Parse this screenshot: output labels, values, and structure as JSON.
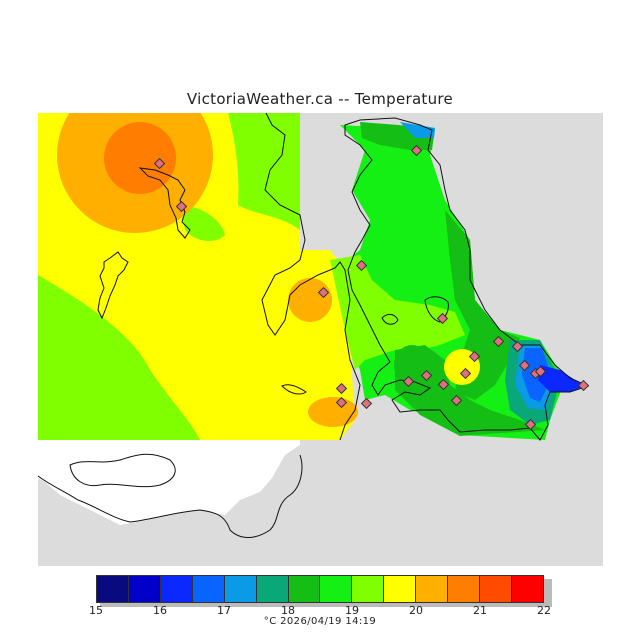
{
  "title": "VictoriaWeather.ca -- Temperature",
  "legend": {
    "ticks": [
      "15",
      "16",
      "17",
      "18",
      "19",
      "20",
      "21",
      "22"
    ],
    "colors": [
      "#0a0a80",
      "#0000c8",
      "#0a28ff",
      "#0a64ff",
      "#0a9ae6",
      "#0aa878",
      "#14be14",
      "#14f014",
      "#80ff00",
      "#ffff00",
      "#ffaf00",
      "#ff7d00",
      "#ff4b00",
      "#ff0000"
    ],
    "caption": "°C  2026/04/19 14:19"
  },
  "palette": {
    "unit_gray": "#dcdcdc",
    "land_white": "#ffffff",
    "coast": "#111111",
    "station_fill": "#e07080"
  }
}
